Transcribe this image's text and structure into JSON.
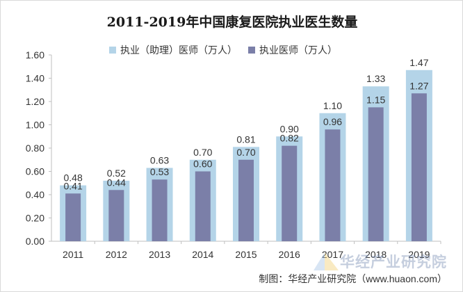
{
  "chart_data": {
    "type": "bar",
    "title": "2011-2019年中国康复医院执业医生数量",
    "categories": [
      "2011",
      "2012",
      "2013",
      "2014",
      "2015",
      "2016",
      "2017",
      "2018",
      "2019"
    ],
    "series": [
      {
        "name": "执业（助理）医师（万人）",
        "values": [
          0.48,
          0.52,
          0.63,
          0.7,
          0.81,
          0.9,
          1.1,
          1.33,
          1.47
        ],
        "color": "#b4d4e8"
      },
      {
        "name": "执业医师（万人）",
        "values": [
          0.41,
          0.44,
          0.53,
          0.6,
          0.7,
          0.82,
          0.96,
          1.15,
          1.27
        ],
        "color": "#7b7fa8"
      }
    ],
    "ylim": [
      0,
      1.6
    ],
    "yticks": [
      0.0,
      0.2,
      0.4,
      0.6,
      0.8,
      1.0,
      1.2,
      1.4,
      1.6
    ],
    "grid": false,
    "legend": "top",
    "xlabel": "",
    "ylabel": ""
  },
  "credit": "制图：华经产业研究院（www.huaon.com）",
  "watermark": "华经产业研究院"
}
